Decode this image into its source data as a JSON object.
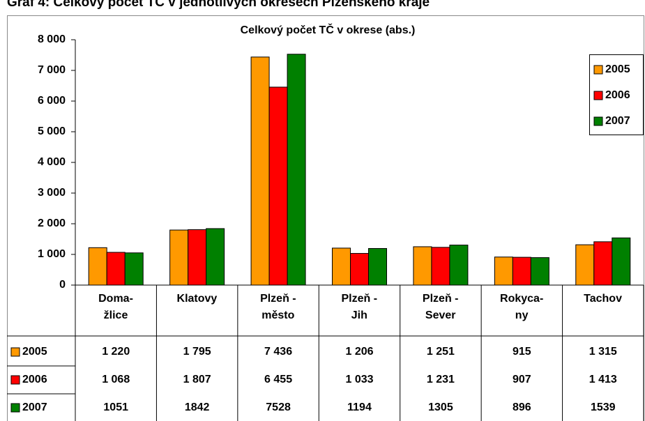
{
  "chart_data": {
    "type": "bar",
    "caption": "Graf 4: Celkový počet TČ v jednotlivých okresech Plzeňského kraje",
    "title": "Celkový počet TČ v okrese (abs.)",
    "categories": [
      "Doma-\nžlice",
      "Klatovy",
      "Plzeň -\nměsto",
      "Plzeň -\nJih",
      "Plzeň -\nSever",
      "Rokyca-\nny",
      "Tachov"
    ],
    "series": [
      {
        "name": "2005",
        "color": "#ff9900",
        "values": [
          1220,
          1795,
          7436,
          1206,
          1251,
          915,
          1315
        ],
        "value_labels": [
          "1 220",
          "1 795",
          "7 436",
          "1 206",
          "1 251",
          "915",
          "1 315"
        ]
      },
      {
        "name": "2006",
        "color": "#ff0000",
        "values": [
          1068,
          1807,
          6455,
          1033,
          1231,
          907,
          1413
        ],
        "value_labels": [
          "1 068",
          "1 807",
          "6 455",
          "1 033",
          "1 231",
          "907",
          "1 413"
        ]
      },
      {
        "name": "2007",
        "color": "#008000",
        "values": [
          1051,
          1842,
          7528,
          1194,
          1305,
          896,
          1539
        ]
      }
    ],
    "ylim": [
      0,
      8000
    ],
    "yticks": [
      0,
      {
        "value": 1000,
        "label": "1 000"
      },
      {
        "value": 2000,
        "label": "2 000"
      },
      {
        "value": 3000,
        "label": "3 000"
      },
      {
        "value": 4000,
        "label": "4 000"
      },
      {
        "value": 5000,
        "label": "5 000"
      },
      {
        "value": 6000,
        "label": "6 000"
      },
      {
        "value": 7000,
        "label": "7 000"
      },
      {
        "value": 8000,
        "label": "8 000"
      }
    ],
    "grid": false,
    "legend": "top-right"
  }
}
